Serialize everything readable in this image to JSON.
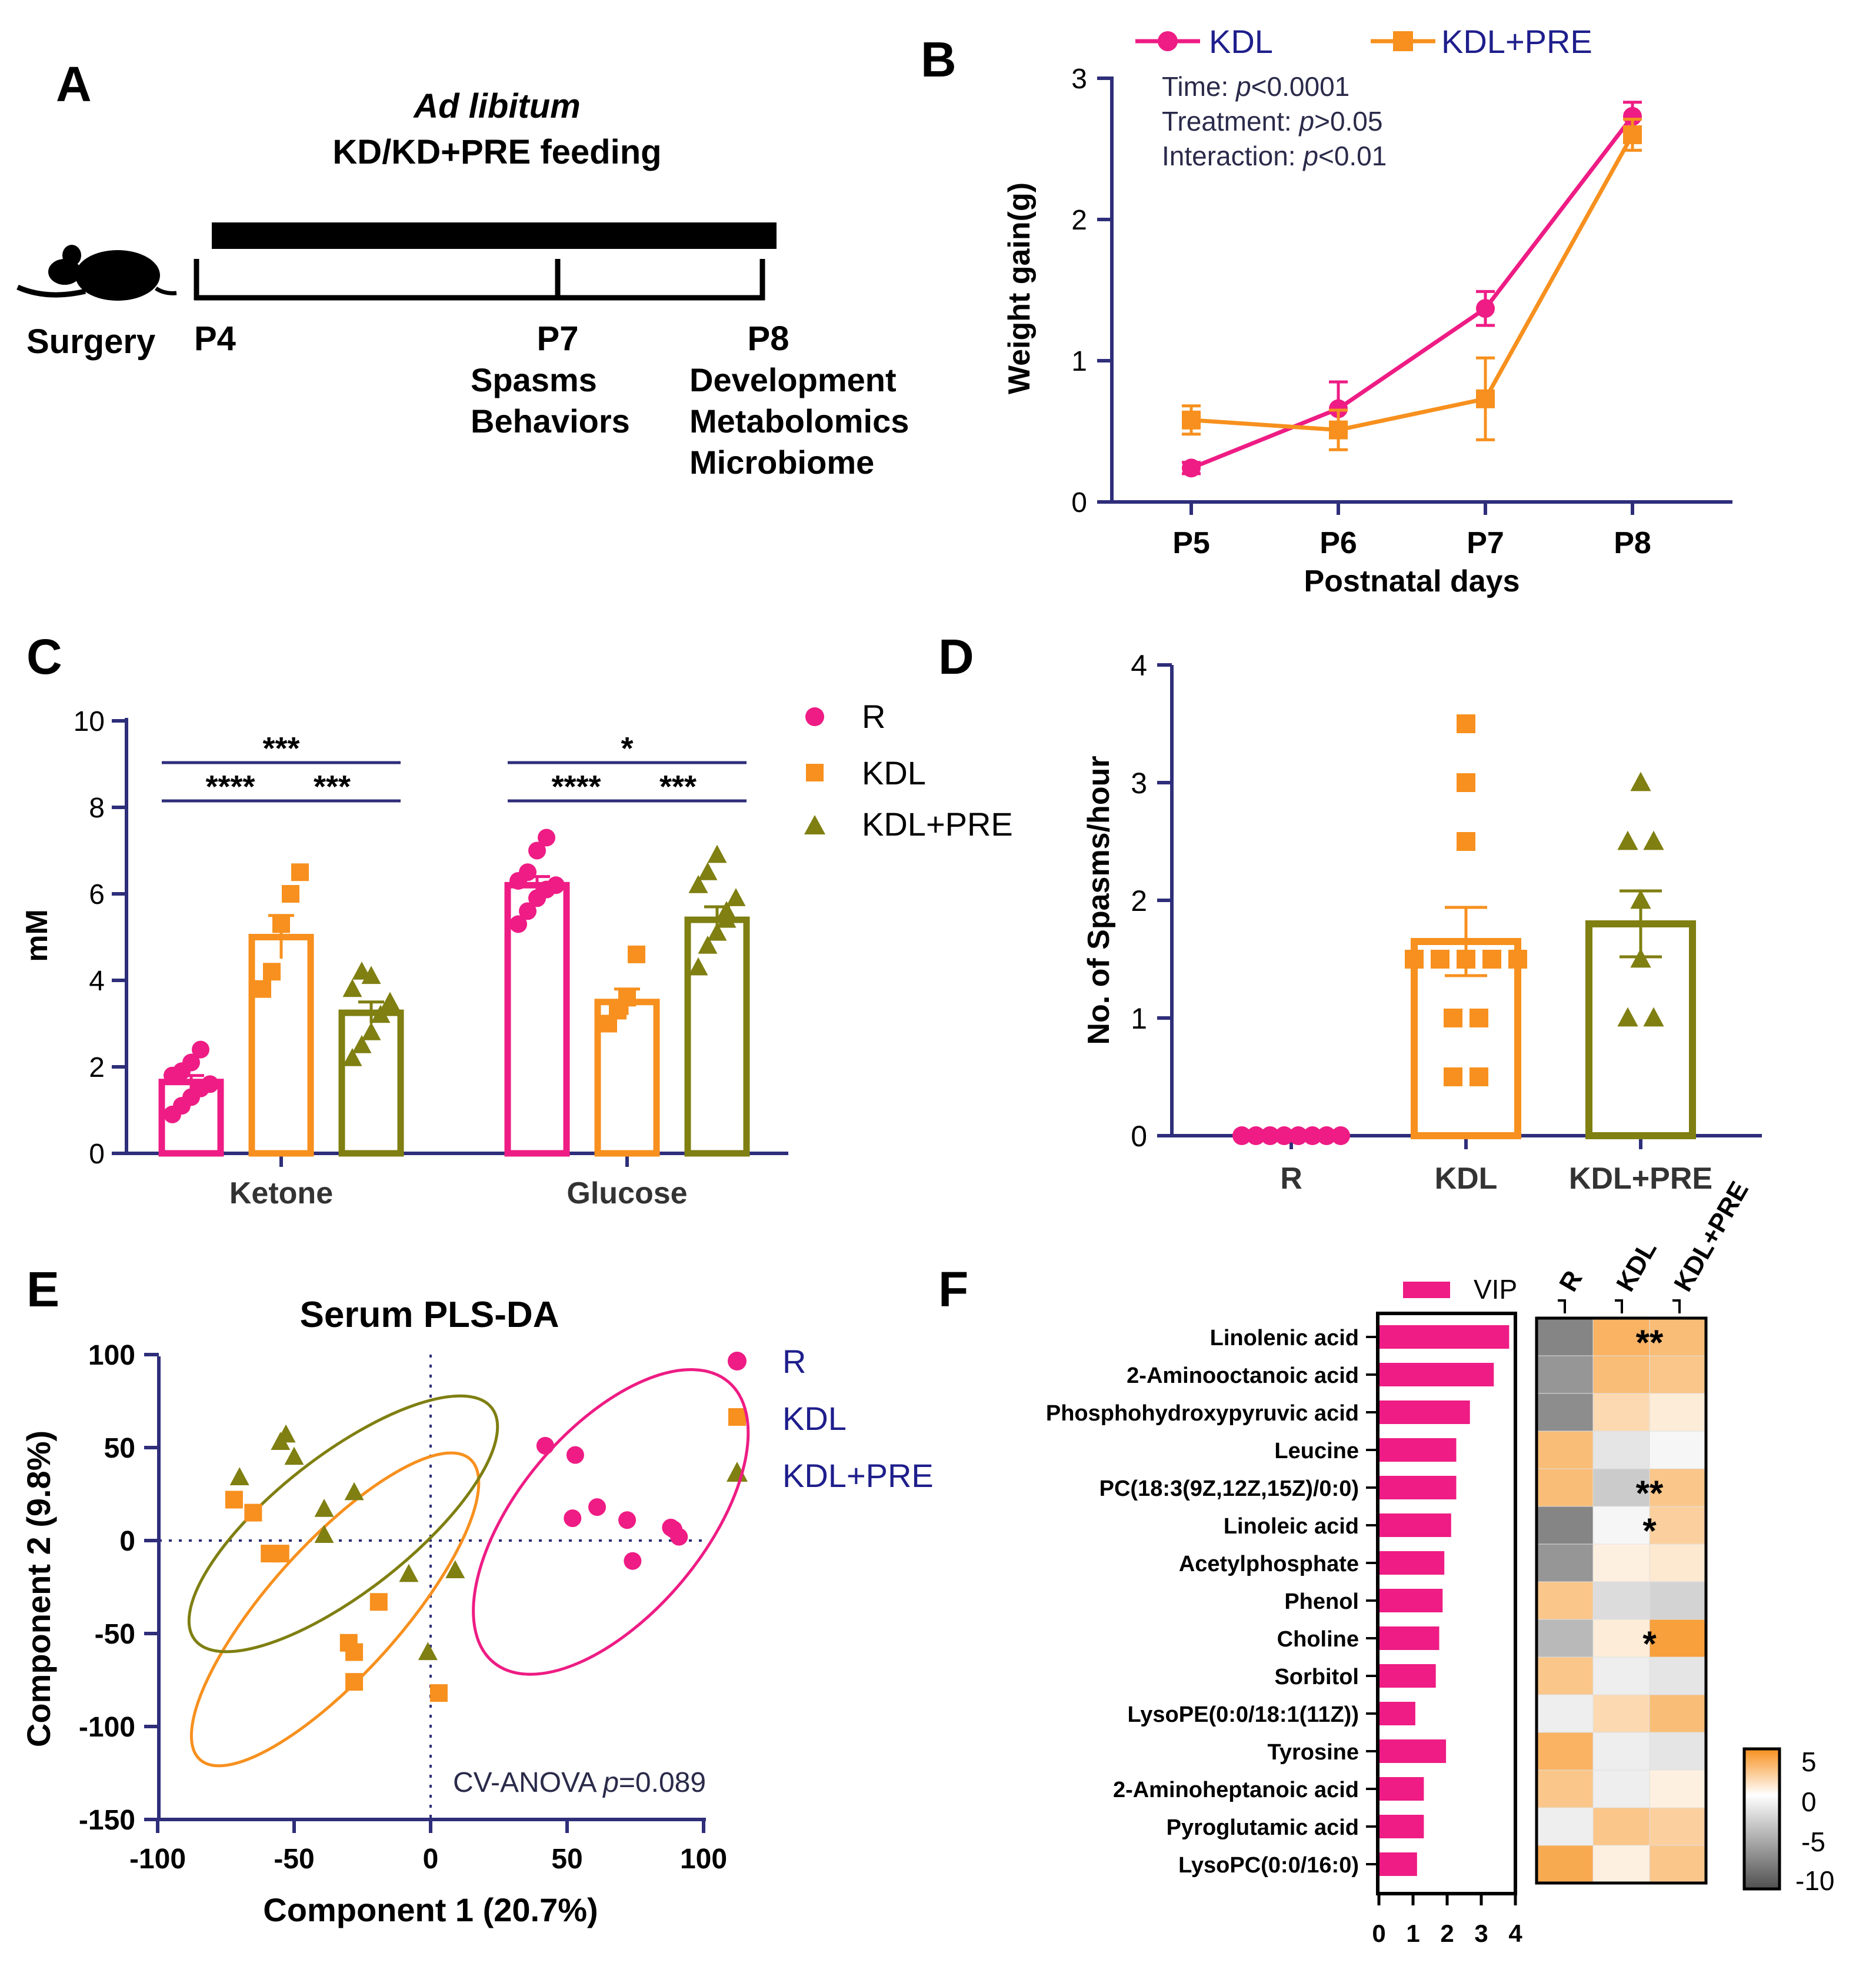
{
  "colors": {
    "R": "#EE1C84",
    "KDL": "#F7901E",
    "KDL_PRE": "#7F7F12",
    "axis": "#2E2E7A",
    "legend_text": "#1E1E8C",
    "ink": "#000000"
  },
  "panels": {
    "A": "A",
    "B": "B",
    "C": "C",
    "D": "D",
    "E": "E",
    "F": "F"
  },
  "panel_a": {
    "title_italic": "Ad libitum",
    "title_line2": "KD/KD+PRE feeding",
    "surgery": "Surgery",
    "p4": "P4",
    "p7": "P7",
    "p8": "P8",
    "p7_items": [
      "Spasms",
      "Behaviors"
    ],
    "p8_items": [
      "Development",
      "Metabolomics",
      "Microbiome"
    ],
    "icon": "mouse-icon"
  },
  "chart_data": [
    {
      "panel": "B",
      "type": "line",
      "xlabel": "Postnatal days",
      "ylabel": "Weight gain(g)",
      "categories": [
        "P5",
        "P6",
        "P7",
        "P8"
      ],
      "ylim": [
        0,
        3
      ],
      "yticks": [
        "0",
        "1",
        "2",
        "3"
      ],
      "legend": [
        "KDL",
        "KDL+PRE"
      ],
      "series": [
        {
          "name": "KDL",
          "values": [
            0.24,
            0.66,
            1.37,
            2.73
          ],
          "sem": [
            0.04,
            0.19,
            0.12,
            0.1
          ]
        },
        {
          "name": "KDL+PRE",
          "values": [
            0.58,
            0.51,
            0.73,
            2.6
          ],
          "sem": [
            0.1,
            0.14,
            0.29,
            0.11
          ]
        }
      ],
      "stats": [
        {
          "pre": "Time: ",
          "ital": "p",
          "post": "<0.0001"
        },
        {
          "pre": "Treatment: ",
          "ital": "p",
          "post": ">0.05"
        },
        {
          "pre": "Interaction: ",
          "ital": "p",
          "post": "<0.01"
        }
      ]
    },
    {
      "panel": "C",
      "type": "bar",
      "ylabel": "mM",
      "ylim": [
        0,
        10
      ],
      "yticks": [
        "0",
        "2",
        "4",
        "6",
        "8",
        "10"
      ],
      "groups": [
        "Ketone",
        "Glucose"
      ],
      "legend": [
        "R",
        "KDL",
        "KDL+PRE"
      ],
      "series": [
        {
          "name": "R",
          "values": [
            1.65,
            6.2
          ],
          "sem": [
            0.15,
            0.2
          ],
          "points": [
            [
              0.9,
              1.1,
              1.3,
              1.5,
              1.6,
              1.8,
              1.9,
              2.1,
              2.4
            ],
            [
              5.3,
              5.6,
              5.9,
              6.1,
              6.2,
              6.3,
              6.5,
              7.0,
              7.3
            ]
          ]
        },
        {
          "name": "KDL",
          "values": [
            5.0,
            3.5
          ],
          "sem": [
            0.5,
            0.3
          ],
          "points": [
            [
              3.8,
              4.2,
              5.3,
              6.0,
              6.5
            ],
            [
              3.0,
              3.3,
              3.6,
              4.6
            ]
          ]
        },
        {
          "name": "KDL+PRE",
          "values": [
            3.25,
            5.4
          ],
          "sem": [
            0.25,
            0.3
          ],
          "points": [
            [
              2.2,
              2.5,
              2.8,
              3.2,
              3.5,
              3.8,
              4.2,
              4.1
            ],
            [
              4.3,
              4.8,
              5.1,
              5.4,
              5.9,
              6.2,
              6.5,
              6.9,
              5.6
            ]
          ]
        }
      ],
      "sig": [
        {
          "group": "Ketone",
          "from": "R",
          "to": "KDL+PRE",
          "label": "***",
          "level": 2
        },
        {
          "group": "Ketone",
          "from": "R",
          "to": "KDL",
          "label": "****",
          "level": 1
        },
        {
          "group": "Ketone",
          "from": "KDL",
          "to": "KDL+PRE",
          "label": "***",
          "level": 1
        },
        {
          "group": "Glucose",
          "from": "R",
          "to": "KDL+PRE",
          "label": "*",
          "level": 2
        },
        {
          "group": "Glucose",
          "from": "R",
          "to": "KDL",
          "label": "****",
          "level": 1
        },
        {
          "group": "Glucose",
          "from": "KDL",
          "to": "KDL+PRE",
          "label": "***",
          "level": 1
        }
      ]
    },
    {
      "panel": "D",
      "type": "bar",
      "ylabel": "No. of Spasms/hour",
      "ylim": [
        0,
        4
      ],
      "yticks": [
        "0",
        "1",
        "2",
        "3",
        "4"
      ],
      "categories": [
        "R",
        "KDL",
        "KDL+PRE"
      ],
      "values": [
        0,
        1.65,
        1.8
      ],
      "sem": [
        0,
        0.29,
        0.28
      ],
      "points": [
        [
          0,
          0,
          0,
          0,
          0,
          0,
          0,
          0
        ],
        [
          3.5,
          3.0,
          2.5,
          1.5,
          1.5,
          1.5,
          1.5,
          1.5,
          1.0,
          1.0,
          0.5,
          0.5
        ],
        [
          3.0,
          2.5,
          2.5,
          2.0,
          1.5,
          1.0,
          1.0
        ]
      ]
    },
    {
      "panel": "E",
      "type": "scatter",
      "title": "Serum PLS-DA",
      "xlabel": "Component 1 (20.7%)",
      "ylabel": "Component 2 (9.8%)",
      "xlim": [
        -100,
        100
      ],
      "ylim": [
        -150,
        100
      ],
      "xticks": [
        "-100",
        "-50",
        "0",
        "50",
        "100"
      ],
      "yticks": [
        "-150",
        "-100",
        "-50",
        "0",
        "50",
        "100"
      ],
      "legend": [
        "R",
        "KDL",
        "KDL+PRE"
      ],
      "annotation": {
        "pre": "CV-ANOVA ",
        "ital": "p",
        "post": "=0.089"
      },
      "series": [
        {
          "name": "R",
          "points": [
            [
              42,
              51
            ],
            [
              53,
              46
            ],
            [
              52,
              12
            ],
            [
              61,
              18
            ],
            [
              72,
              11
            ],
            [
              74,
              -11
            ],
            [
              88,
              7
            ],
            [
              89,
              6
            ],
            [
              91,
              2
            ]
          ]
        },
        {
          "name": "KDL",
          "points": [
            [
              -72,
              22
            ],
            [
              -65,
              15
            ],
            [
              -59,
              -7
            ],
            [
              -55,
              -7
            ],
            [
              -30,
              -55
            ],
            [
              -28,
              -60
            ],
            [
              -28,
              -76
            ],
            [
              -19,
              -33
            ],
            [
              3,
              -82
            ]
          ]
        },
        {
          "name": "KDL+PRE",
          "points": [
            [
              -70,
              34
            ],
            [
              -55,
              53
            ],
            [
              -53,
              57
            ],
            [
              -50,
              45
            ],
            [
              -39,
              17
            ],
            [
              -39,
              3
            ],
            [
              -28,
              26
            ],
            [
              -8,
              -18
            ],
            [
              -1,
              -60
            ],
            [
              9,
              -16
            ]
          ]
        }
      ],
      "ellipses": [
        {
          "group": "R",
          "center": [
            66,
            10
          ],
          "rx": 67,
          "ry": 34,
          "angle_deg": -50
        },
        {
          "group": "KDL",
          "center": [
            -35,
            -37
          ],
          "rx": 74,
          "ry": 24,
          "angle_deg": -48
        },
        {
          "group": "KDL+PRE",
          "center": [
            -32,
            9
          ],
          "rx": 69,
          "ry": 25,
          "angle_deg": -38
        }
      ]
    },
    {
      "panel": "F",
      "type": "heatmap",
      "bar_legend": "VIP",
      "metabolites": [
        "Linolenic acid",
        "2-Aminooctanoic acid",
        "Phosphohydroxypyruvic acid",
        "Leucine",
        "PC(18:3(9Z,12Z,15Z)/0:0)",
        "Linoleic acid",
        "Acetylphosphate",
        "Phenol",
        "Choline",
        "Sorbitol",
        "LysoPE(0:0/18:1(11Z))",
        "Tyrosine",
        "2-Aminoheptanoic acid",
        "Pyroglutamic acid",
        "LysoPC(0:0/16:0)"
      ],
      "vip": [
        3.8,
        3.35,
        2.65,
        2.25,
        2.25,
        2.1,
        1.9,
        1.85,
        1.75,
        1.65,
        1.05,
        1.95,
        1.3,
        1.3,
        1.1
      ],
      "vip_xlim": [
        0,
        4
      ],
      "vip_xticks": [
        "0",
        "1",
        "2",
        "3",
        "4"
      ],
      "columns": [
        "R",
        "KDL",
        "KDL+PRE"
      ],
      "values": [
        [
          -7,
          4,
          3.5
        ],
        [
          -6,
          3.5,
          3
        ],
        [
          -6.5,
          2,
          1
        ],
        [
          3.5,
          -1.5,
          -0.5
        ],
        [
          3.5,
          -3,
          3
        ],
        [
          -7,
          -0.5,
          2.5
        ],
        [
          -6,
          0.8,
          1.2
        ],
        [
          3,
          -2,
          -2.5
        ],
        [
          -4,
          1,
          5
        ],
        [
          3,
          -1,
          -1.5
        ],
        [
          -1,
          2,
          3.5
        ],
        [
          4,
          -1,
          -1.5
        ],
        [
          3,
          -1,
          0.8
        ],
        [
          -1,
          3,
          2.5
        ],
        [
          4.5,
          0.8,
          3
        ]
      ],
      "stars": [
        {
          "row": 0,
          "label": "**"
        },
        {
          "row": 4,
          "label": "**"
        },
        {
          "row": 5,
          "label": "*"
        },
        {
          "row": 8,
          "label": "*"
        }
      ],
      "scale_ticks": [
        "5",
        "0",
        "-5",
        "-10"
      ],
      "scale_range": [
        -10,
        5
      ]
    }
  ]
}
